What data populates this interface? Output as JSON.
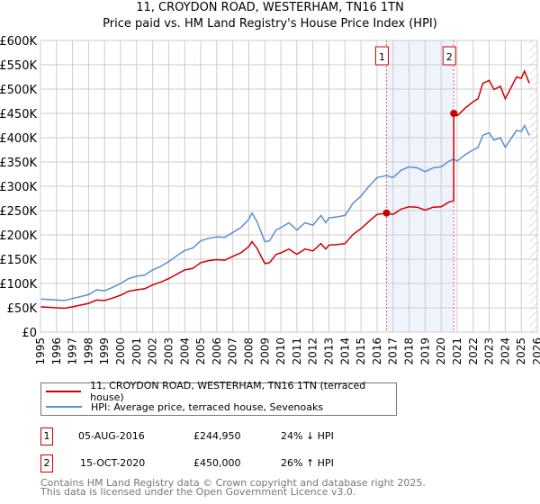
{
  "chart_data": {
    "type": "line",
    "title": "11, CROYDON ROAD, WESTERHAM, TN16 1TN",
    "subtitle": "Price paid vs. HM Land Registry's House Price Index (HPI)",
    "xlim": [
      1995,
      2026
    ],
    "ylim": [
      0,
      600000
    ],
    "grid": true,
    "x_ticks": [
      "1995",
      "1996",
      "1997",
      "1998",
      "1999",
      "2000",
      "2001",
      "2002",
      "2003",
      "2004",
      "2005",
      "2006",
      "2007",
      "2008",
      "2009",
      "2010",
      "2011",
      "2012",
      "2013",
      "2014",
      "2015",
      "2016",
      "2017",
      "2018",
      "2019",
      "2020",
      "2021",
      "2022",
      "2023",
      "2024",
      "2025",
      "2026"
    ],
    "y_ticks": [
      {
        "v": 0,
        "label": "£0"
      },
      {
        "v": 50000,
        "label": "£50K"
      },
      {
        "v": 100000,
        "label": "£100K"
      },
      {
        "v": 150000,
        "label": "£150K"
      },
      {
        "v": 200000,
        "label": "£200K"
      },
      {
        "v": 250000,
        "label": "£250K"
      },
      {
        "v": 300000,
        "label": "£300K"
      },
      {
        "v": 350000,
        "label": "£350K"
      },
      {
        "v": 400000,
        "label": "£400K"
      },
      {
        "v": 450000,
        "label": "£450K"
      },
      {
        "v": 500000,
        "label": "£500K"
      },
      {
        "v": 550000,
        "label": "£550K"
      },
      {
        "v": 600000,
        "label": "£600K"
      }
    ],
    "shaded_range": [
      2016.59,
      2020.79
    ],
    "hatched_from": 2025.5,
    "series": [
      {
        "name": "11, CROYDON ROAD, WESTERHAM, TN16 1TN (terraced house)",
        "color": "#cc0000",
        "x": [
          1995,
          1996,
          1996.5,
          1997,
          1998,
          1998.5,
          1999,
          1999.5,
          2000,
          2000.5,
          2001,
          2001.5,
          2002,
          2002.5,
          2003,
          2003.5,
          2004,
          2004.5,
          2005,
          2005.5,
          2006,
          2006.5,
          2007,
          2007.5,
          2008,
          2008.2,
          2008.5,
          2009,
          2009.3,
          2009.7,
          2010,
          2010.5,
          2011,
          2011.5,
          2012,
          2012.5,
          2012.8,
          2013,
          2013.5,
          2014,
          2014.5,
          2015,
          2015.5,
          2016,
          2016.59,
          2017,
          2017.5,
          2018,
          2018.5,
          2019,
          2019.5,
          2020,
          2020.5,
          2020.78,
          2020.79,
          2021,
          2021.5,
          2022,
          2022.3,
          2022.6,
          2023,
          2023.3,
          2023.7,
          2024,
          2024.3,
          2024.7,
          2025,
          2025.2,
          2025.5
        ],
        "y": [
          52,
          50,
          49,
          52,
          59,
          66,
          65,
          70,
          76,
          84,
          87,
          89,
          97,
          103,
          110,
          119,
          128,
          131,
          143,
          147,
          149,
          148,
          156,
          163,
          176,
          186,
          173,
          141,
          143,
          160,
          163,
          171,
          160,
          171,
          167,
          182,
          171,
          179,
          180,
          182,
          201,
          213,
          228,
          242,
          245,
          242,
          253,
          258,
          257,
          251,
          257,
          258,
          268,
          270,
          450,
          445,
          461,
          474,
          480,
          512,
          518,
          499,
          506,
          480,
          499,
          525,
          522,
          537,
          512
        ]
      },
      {
        "name": "HPI: Average price, terraced house, Sevenoaks",
        "color": "#5b8fd4",
        "x": [
          1995,
          1996,
          1996.5,
          1997,
          1998,
          1998.5,
          1999,
          1999.5,
          2000,
          2000.5,
          2001,
          2001.5,
          2002,
          2002.5,
          2003,
          2003.5,
          2004,
          2004.5,
          2005,
          2005.5,
          2006,
          2006.5,
          2007,
          2007.5,
          2008,
          2008.2,
          2008.5,
          2009,
          2009.3,
          2009.7,
          2010,
          2010.5,
          2011,
          2011.5,
          2012,
          2012.5,
          2012.8,
          2013,
          2013.5,
          2014,
          2014.5,
          2015,
          2015.5,
          2016,
          2016.59,
          2017,
          2017.5,
          2018,
          2018.5,
          2019,
          2019.5,
          2020,
          2020.5,
          2020.79,
          2021,
          2021.5,
          2022,
          2022.3,
          2022.6,
          2023,
          2023.3,
          2023.7,
          2024,
          2024.3,
          2024.7,
          2025,
          2025.2,
          2025.5
        ],
        "y": [
          68,
          66,
          65,
          69,
          77,
          87,
          85,
          92,
          100,
          110,
          115,
          117,
          128,
          135,
          145,
          157,
          168,
          173,
          188,
          193,
          196,
          195,
          205,
          215,
          232,
          245,
          228,
          186,
          188,
          210,
          215,
          225,
          210,
          225,
          220,
          240,
          225,
          235,
          237,
          240,
          265,
          280,
          300,
          318,
          322,
          318,
          333,
          340,
          338,
          330,
          338,
          340,
          352,
          356,
          352,
          365,
          375,
          380,
          405,
          410,
          395,
          400,
          380,
          395,
          415,
          413,
          425,
          405
        ]
      }
    ],
    "y_unit": "thousands GBP",
    "sales": [
      {
        "num": "1",
        "x": 2016.59,
        "y": 244.95,
        "date": "05-AUG-2016",
        "price": "£244,950",
        "delta": "24% ↓ HPI"
      },
      {
        "num": "2",
        "x": 2020.79,
        "y": 450,
        "date": "15-OCT-2020",
        "price": "£450,000",
        "delta": "26% ↑ HPI"
      }
    ]
  },
  "legend": {
    "property": "11, CROYDON ROAD, WESTERHAM, TN16 1TN (terraced house)",
    "hpi": "HPI: Average price, terraced house, Sevenoaks"
  },
  "footer": {
    "line1": "Contains HM Land Registry data © Crown copyright and database right 2025.",
    "line2": "This data is licensed under the Open Government Licence v3.0."
  }
}
